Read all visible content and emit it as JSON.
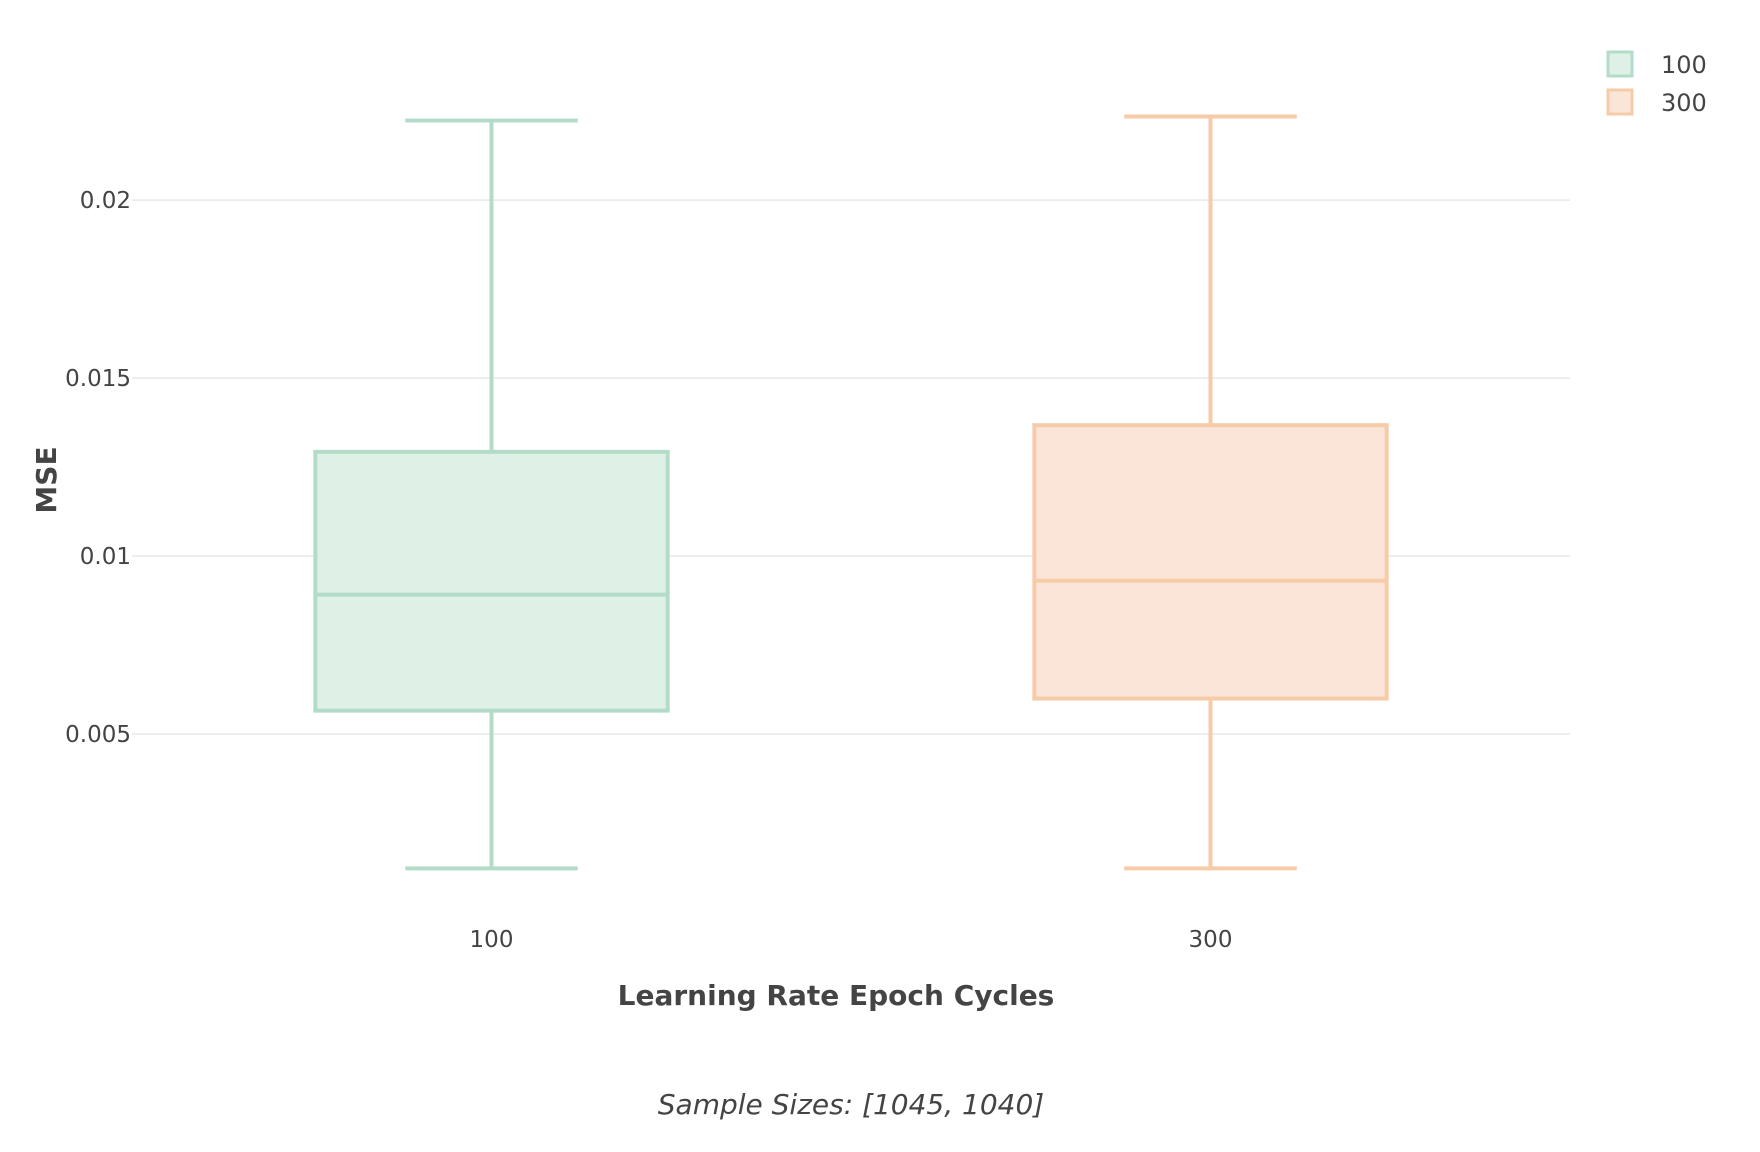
{
  "chart_data": {
    "type": "box",
    "categories": [
      "100",
      "300"
    ],
    "series": [
      {
        "name": "100",
        "category": "100",
        "lower_fence": 0.00123,
        "q1": 0.00566,
        "median": 0.00892,
        "q3": 0.01293,
        "upper_fence": 0.02224,
        "color": "#b3dcc8",
        "fill": "#dff0e6"
      },
      {
        "name": "300",
        "category": "300",
        "lower_fence": 0.00123,
        "q1": 0.006,
        "median": 0.00931,
        "q3": 0.01368,
        "upper_fence": 0.02235,
        "color": "#f6cba8",
        "fill": "#fae5d8"
      }
    ],
    "xlabel": "Learning Rate Epoch Cycles",
    "ylabel": "MSE",
    "ylim": [
      0.0002,
      0.0245
    ],
    "yticks": [
      {
        "value": 0.005,
        "label": "0.005"
      },
      {
        "value": 0.01,
        "label": "0.01"
      },
      {
        "value": 0.015,
        "label": "0.015"
      },
      {
        "value": 0.02,
        "label": "0.02"
      }
    ],
    "grid": true,
    "legend_position": "top-right",
    "annotation": "Sample Sizes: [1045, 1040]"
  }
}
